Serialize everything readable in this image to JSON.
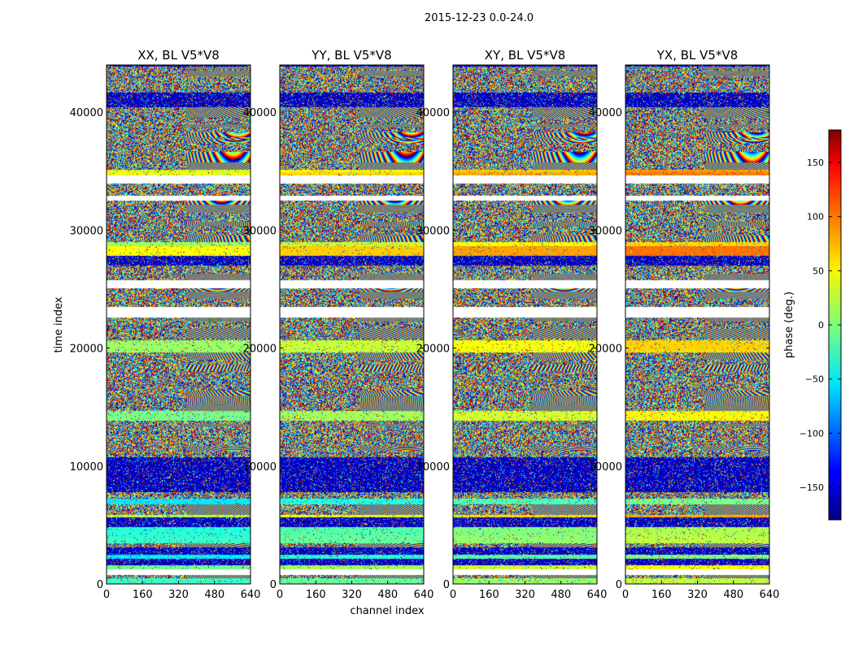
{
  "figure": {
    "suptitle": "2015-12-23 0.0-24.0"
  },
  "chart_data": {
    "type": "heatmap",
    "title": "2015-12-23 0.0-24.0",
    "panels": [
      {
        "title": "XX, BL V5*V8",
        "xlim": [
          0,
          640
        ],
        "ylim": [
          0,
          44000
        ]
      },
      {
        "title": "YY, BL V5*V8",
        "xlim": [
          0,
          640
        ],
        "ylim": [
          0,
          44000
        ]
      },
      {
        "title": "XY, BL V5*V8",
        "xlim": [
          0,
          640
        ],
        "ylim": [
          0,
          44000
        ]
      },
      {
        "title": "YX, BL V5*V8",
        "xlim": [
          0,
          640
        ],
        "ylim": [
          0,
          44000
        ]
      }
    ],
    "x_ticks": [
      0,
      160,
      320,
      480,
      640
    ],
    "x_tick_labels": [
      "0",
      "160",
      "320",
      "480",
      "640"
    ],
    "y_ticks": [
      0,
      10000,
      20000,
      30000,
      40000
    ],
    "y_tick_labels": [
      "0",
      "10000",
      "20000",
      "30000",
      "40000"
    ],
    "xlabel": "channel index",
    "ylabel": "time index",
    "colorbar": {
      "label": "phase (deg.)",
      "range": [
        -180,
        180
      ],
      "ticks": [
        -150,
        -100,
        -50,
        0,
        50,
        100,
        150
      ],
      "tick_labels": [
        "−150",
        "−100",
        "−50",
        "0",
        "50",
        "100",
        "150"
      ],
      "colormap": "jet"
    },
    "grid": false
  }
}
